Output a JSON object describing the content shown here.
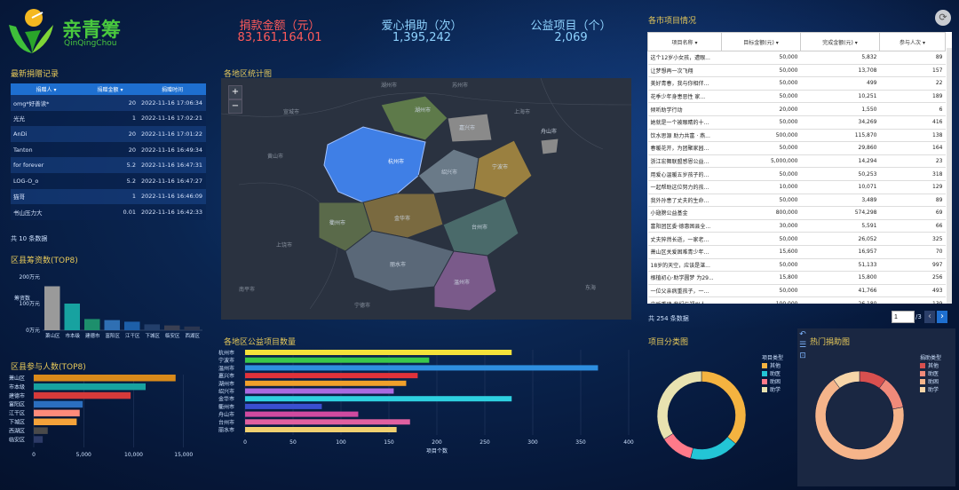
{
  "brand": {
    "name": "亲青筹",
    "sub": "QinQingChou"
  },
  "kpis": [
    {
      "label": "捐款金额（元）",
      "value": "83,161,164.01",
      "color": "#ff5a5a"
    },
    {
      "label": "爱心捐助（次）",
      "value": "1,395,242",
      "color": "#8fd3ff"
    },
    {
      "label": "公益项目（个）",
      "value": "2,069",
      "color": "#8fd3ff"
    }
  ],
  "donations": {
    "title": "最新捐赠记录",
    "headers": [
      "捐赠人",
      "捐赠金额",
      "捐赠时间"
    ],
    "rows": [
      [
        "omg*好善读*",
        "20",
        "2022-11-16 17:06:34"
      ],
      [
        "光光",
        "1",
        "2022-11-16 17:02:21"
      ],
      [
        "AnDi",
        "20",
        "2022-11-16 17:01:22"
      ],
      [
        "Tanton",
        "20",
        "2022-11-16 16:49:34"
      ],
      [
        "for forever",
        "5.2",
        "2022-11-16 16:47:31"
      ],
      [
        "LOG-O_o",
        "5.2",
        "2022-11-16 16:47:27"
      ],
      [
        "猫哥",
        "1",
        "2022-11-16 16:46:09"
      ],
      [
        "书山压力大",
        "0.01",
        "2022-11-16 16:42:33"
      ]
    ],
    "footer": "共 10 条数据"
  },
  "map": {
    "title": "各地区统计图",
    "zoom_in": "+",
    "zoom_out": "−",
    "highlight": "杭州市",
    "labels": [
      "湖州市",
      "嘉兴市",
      "杭州市",
      "绍兴市",
      "宁波市",
      "舟山市",
      "金华市",
      "台州市",
      "衢州市",
      "丽水市",
      "温州市",
      "黄山市",
      "上饶市",
      "宁德市",
      "南平市",
      "东海",
      "宣城市",
      "湖州市",
      "苏州市",
      "上海市"
    ]
  },
  "county_funds": {
    "title": "区县筹资数(TOP8)",
    "ylabel": "筹资数",
    "yticks": [
      "200万元",
      "100万元",
      "0万元"
    ],
    "categories": [
      "萧山区",
      "市本级",
      "建德市",
      "富阳区",
      "江干区",
      "下城区",
      "临安区",
      "西湖区"
    ],
    "values": [
      165,
      100,
      42,
      38,
      32,
      22,
      18,
      14
    ],
    "colors": [
      "#9a9a9a",
      "#17a2a0",
      "#1d8f6c",
      "#2f6fb3",
      "#1d5fa8",
      "#233f6b",
      "#3a3f52",
      "#2b3650"
    ]
  },
  "county_participants": {
    "title": "区县参与人数(TOP8)",
    "categories": [
      "萧山区",
      "市本级",
      "建德市",
      "富阳区",
      "江干区",
      "下城区",
      "西湖区",
      "临安区"
    ],
    "values": [
      14200,
      11200,
      9700,
      4900,
      4600,
      4300,
      1400,
      900
    ],
    "colors": [
      "#d98a1a",
      "#17a2a0",
      "#d63a3a",
      "#2b6fc0",
      "#ff8a7a",
      "#f4a23a",
      "#4a4a4a",
      "#2c3a66"
    ],
    "xticks": [
      "0",
      "5,000",
      "10,000",
      "15,000"
    ]
  },
  "region_projects": {
    "title": "各地区公益项目数量",
    "xlabel": "项目个数",
    "categories": [
      "杭州市",
      "宁波市",
      "温州市",
      "嘉兴市",
      "湖州市",
      "绍兴市",
      "金华市",
      "衢州市",
      "舟山市",
      "台州市",
      "丽水市"
    ],
    "values": [
      278,
      192,
      368,
      180,
      168,
      155,
      278,
      80,
      118,
      172,
      158
    ],
    "colors": [
      "#f5e23a",
      "#3ac84a",
      "#2e8fe0",
      "#e0323a",
      "#f0a02a",
      "#a86ae0",
      "#2ed0e0",
      "#3a4fd0",
      "#d04aa0",
      "#e060a0",
      "#f0d070"
    ],
    "xticks": [
      "0",
      "50",
      "100",
      "150",
      "200",
      "250",
      "300",
      "350",
      "400"
    ]
  },
  "city_projects": {
    "title": "各市项目情况",
    "headers": [
      "项目名称",
      "目标金额(元)",
      "完成金额(元)",
      "参与人次"
    ],
    "rows": [
      [
        "这个12岁小女孩，遭眼...",
        "50,000",
        "5,832",
        "89"
      ],
      [
        "让梦想再一次飞翔",
        "50,000",
        "13,708",
        "157"
      ],
      [
        "美好青春，我与你相伴...",
        "50,000",
        "499",
        "22"
      ],
      [
        "花季少年身患恶性 家...",
        "50,000",
        "10,251",
        "189"
      ],
      [
        "倾听助学行动",
        "20,000",
        "1,550",
        "6"
      ],
      [
        "她就是一个被眼睛的十...",
        "50,000",
        "34,269",
        "416"
      ],
      [
        "饮水思源 助力共富 · 燕...",
        "500,000",
        "115,870",
        "138"
      ],
      [
        "春暖花开，为团聚家园...",
        "50,000",
        "29,860",
        "164"
      ],
      [
        "浙江宏舞联盟感恩公益...",
        "5,000,000",
        "14,294",
        "23"
      ],
      [
        "用爱心温暖五岁孩子的...",
        "50,000",
        "50,253",
        "318"
      ],
      [
        "一起帮助这位努力的孩...",
        "10,000",
        "10,071",
        "129"
      ],
      [
        "我外孙患了丈夫的生命...",
        "50,000",
        "3,489",
        "89"
      ],
      [
        "小翅膀公益基金",
        "800,000",
        "574,298",
        "69"
      ],
      [
        "富阳团区委·德惠困县全...",
        "30,000",
        "5,591",
        "66"
      ],
      [
        "丈夫猝然长逝，一家老...",
        "50,000",
        "26,052",
        "325"
      ],
      [
        "萧山区关爱困难青少年...",
        "15,600",
        "16,957",
        "70"
      ],
      [
        "18岁的天空，应该是湛...",
        "50,000",
        "51,133",
        "997"
      ],
      [
        "根植初心·助学圆梦 为29...",
        "15,800",
        "15,800",
        "256"
      ],
      [
        "一位父亲病重孩子，一...",
        "50,000",
        "41,766",
        "493"
      ],
      [
        "灾后重建 我们与郑州人...",
        "100,000",
        "26,180",
        "139"
      ]
    ],
    "footer": "共 254 条数据",
    "page": "1",
    "page_total": "/3",
    "prev": "‹",
    "next": "›"
  },
  "project_category": {
    "title": "项目分类图",
    "legend_title": "项目类型",
    "legend": [
      {
        "name": "其他",
        "color": "#f4b340"
      },
      {
        "name": "助医",
        "color": "#23c5d6"
      },
      {
        "name": "助困",
        "color": "#ff7a8a"
      },
      {
        "name": "助学",
        "color": "#e8e2b0"
      }
    ],
    "values": [
      36,
      18,
      12,
      34
    ],
    "order_colors": [
      "#f4b340",
      "#23c5d6",
      "#ff7a8a",
      "#e8e2b0"
    ]
  },
  "hot_donation": {
    "title": "热门捐助图",
    "legend_title": "捐助类型",
    "legend": [
      {
        "name": "其他",
        "color": "#d9504f"
      },
      {
        "name": "助医",
        "color": "#f08a7a"
      },
      {
        "name": "助困",
        "color": "#f5b48a"
      },
      {
        "name": "助学",
        "color": "#f7d5a8"
      }
    ],
    "values": [
      10,
      12,
      68,
      10
    ],
    "order_colors": [
      "#d9504f",
      "#f08a7a",
      "#f5b48a",
      "#f7d5a8"
    ]
  },
  "tools": [
    "↶",
    "☰",
    "⊡"
  ]
}
